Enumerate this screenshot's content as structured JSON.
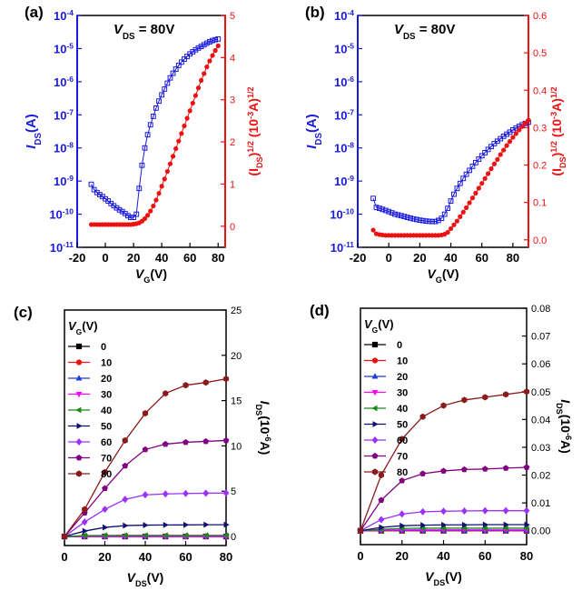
{
  "colors": {
    "blue": "#1a1adf",
    "red": "#ee1111",
    "black": "#000000"
  },
  "chart_data": [
    {
      "panel": "(a)",
      "type": "line",
      "annotation": "V_DS = 80V",
      "xlabel": "V_G(V)",
      "ylabel_left": "I_DS(A)",
      "ylabel_right": "(I_DS)^1/2 (10^-3A)^1/2",
      "xlim": [
        -20,
        85
      ],
      "xticks": [
        "-20",
        "0",
        "20",
        "40",
        "60",
        "80"
      ],
      "ylim_left_log10": [
        -11,
        -4
      ],
      "yticks_left": [
        "10^-11",
        "10^-10",
        "10^-9",
        "10^-8",
        "10^-7",
        "10^-6",
        "10^-5",
        "10^-4"
      ],
      "ylim_right": [
        -0.5,
        5
      ],
      "yticks_right": [
        "0",
        "1",
        "2",
        "3",
        "4",
        "5"
      ],
      "series": [
        {
          "axis": "left",
          "marker": "open-square",
          "color": "blue",
          "x": [
            -10,
            -8,
            -6,
            -4,
            -2,
            0,
            2,
            4,
            6,
            8,
            10,
            12,
            14,
            16,
            18,
            20,
            22,
            24,
            26,
            28,
            30,
            32,
            34,
            36,
            38,
            40,
            42,
            44,
            46,
            48,
            50,
            52,
            54,
            56,
            58,
            60,
            62,
            64,
            66,
            68,
            70,
            72,
            74,
            76,
            78,
            80
          ],
          "y": [
            8e-10,
            5.5e-10,
            4.5e-10,
            3.9e-10,
            3.4e-10,
            2.9e-10,
            2.5e-10,
            2.1e-10,
            1.8e-10,
            1.55e-10,
            1.35e-10,
            1.2e-10,
            1.05e-10,
            9e-11,
            8e-11,
            8e-11,
            1e-10,
            6e-10,
            3e-09,
            1e-08,
            2.5e-08,
            5e-08,
            9e-08,
            1.6e-07,
            2.6e-07,
            4e-07,
            6e-07,
            9e-07,
            1.3e-06,
            1.8e-06,
            2.4e-06,
            3.1e-06,
            3.9e-06,
            4.8e-06,
            5.8e-06,
            6.9e-06,
            8e-06,
            9.2e-06,
            1.04e-05,
            1.16e-05,
            1.3e-05,
            1.45e-05,
            1.6e-05,
            1.75e-05,
            1.85e-05,
            1.95e-05
          ]
        },
        {
          "axis": "right",
          "marker": "filled-circle",
          "color": "red",
          "x": [
            -10,
            -8,
            -6,
            -4,
            -2,
            0,
            2,
            4,
            6,
            8,
            10,
            12,
            14,
            16,
            18,
            20,
            22,
            24,
            26,
            28,
            30,
            32,
            34,
            36,
            38,
            40,
            42,
            44,
            46,
            48,
            50,
            52,
            54,
            56,
            58,
            60,
            62,
            64,
            66,
            68,
            70,
            72,
            74,
            76,
            78,
            80
          ],
          "y": [
            0.04,
            0.04,
            0.04,
            0.04,
            0.04,
            0.04,
            0.04,
            0.04,
            0.04,
            0.04,
            0.04,
            0.04,
            0.04,
            0.04,
            0.04,
            0.05,
            0.06,
            0.08,
            0.12,
            0.18,
            0.26,
            0.36,
            0.48,
            0.62,
            0.78,
            0.95,
            1.12,
            1.3,
            1.48,
            1.66,
            1.84,
            2.02,
            2.2,
            2.38,
            2.56,
            2.74,
            2.92,
            3.1,
            3.28,
            3.46,
            3.62,
            3.78,
            3.92,
            4.05,
            4.17,
            4.28
          ]
        }
      ]
    },
    {
      "panel": "(b)",
      "type": "line",
      "annotation": "V_DS = 80V",
      "xlabel": "V_G(V)",
      "ylabel_left": "I_DS(A)",
      "ylabel_right": "(I_DS)^1/2 (10^-3A)^1/2",
      "xlim": [
        -20,
        90
      ],
      "xticks": [
        "-20",
        "0",
        "20",
        "40",
        "60",
        "80"
      ],
      "ylim_left_log10": [
        -11,
        -4
      ],
      "yticks_left": [
        "10^-11",
        "10^-10",
        "10^-9",
        "10^-8",
        "10^-7",
        "10^-6",
        "10^-5",
        "10^-4"
      ],
      "ylim_right": [
        -0.02,
        0.6
      ],
      "yticks_right": [
        "0.0",
        "0.1",
        "0.2",
        "0.3",
        "0.4",
        "0.5",
        "0.6"
      ],
      "series": [
        {
          "axis": "left",
          "marker": "open-square",
          "color": "blue",
          "x": [
            -10,
            -8,
            -6,
            -4,
            -2,
            0,
            2,
            4,
            6,
            8,
            10,
            12,
            14,
            16,
            18,
            20,
            22,
            24,
            26,
            28,
            30,
            32,
            34,
            36,
            38,
            40,
            42,
            44,
            46,
            48,
            50,
            52,
            54,
            56,
            58,
            60,
            62,
            64,
            66,
            68,
            70,
            72,
            74,
            76,
            78,
            80,
            82,
            84,
            86,
            88,
            90
          ],
          "y": [
            3e-10,
            1.6e-10,
            1.5e-10,
            1.4e-10,
            1.3e-10,
            1.2e-10,
            1.1e-10,
            1e-10,
            9.5e-11,
            9e-11,
            8.5e-11,
            8e-11,
            7.6e-11,
            7.2e-11,
            6.9e-11,
            6.6e-11,
            6.4e-11,
            6.2e-11,
            6.1e-11,
            6e-11,
            6e-11,
            6.5e-11,
            7.5e-11,
            1e-10,
            1.5e-10,
            2.5e-10,
            4e-10,
            6e-10,
            8.5e-10,
            1.2e-09,
            1.6e-09,
            2.1e-09,
            2.8e-09,
            3.6e-09,
            4.6e-09,
            5.8e-09,
            7.2e-09,
            9e-09,
            1.1e-08,
            1.35e-08,
            1.6e-08,
            1.9e-08,
            2.25e-08,
            2.6e-08,
            3e-08,
            3.5e-08,
            4e-08,
            4.5e-08,
            5e-08,
            5.5e-08,
            6e-08
          ]
        },
        {
          "axis": "right",
          "marker": "filled-circle",
          "color": "red",
          "x": [
            -10,
            -8,
            -6,
            -4,
            -2,
            0,
            2,
            4,
            6,
            8,
            10,
            12,
            14,
            16,
            18,
            20,
            22,
            24,
            26,
            28,
            30,
            32,
            34,
            36,
            38,
            40,
            42,
            44,
            46,
            48,
            50,
            52,
            54,
            56,
            58,
            60,
            62,
            64,
            66,
            68,
            70,
            72,
            74,
            76,
            78,
            80,
            82,
            84,
            86,
            88,
            90
          ],
          "y": [
            0.026,
            0.016,
            0.014,
            0.013,
            0.012,
            0.012,
            0.012,
            0.012,
            0.012,
            0.012,
            0.012,
            0.012,
            0.012,
            0.012,
            0.012,
            0.012,
            0.012,
            0.012,
            0.012,
            0.012,
            0.012,
            0.012,
            0.013,
            0.015,
            0.02,
            0.03,
            0.04,
            0.05,
            0.062,
            0.074,
            0.086,
            0.099,
            0.112,
            0.125,
            0.138,
            0.151,
            0.164,
            0.177,
            0.19,
            0.203,
            0.215,
            0.228,
            0.24,
            0.252,
            0.263,
            0.274,
            0.284,
            0.294,
            0.303,
            0.312,
            0.32
          ]
        }
      ]
    },
    {
      "panel": "(c)",
      "type": "line",
      "xlabel": "V_DS(V)",
      "ylabel_right": "I_DS(10^-6A)",
      "legend_title": "V_G(V)",
      "legend_position": "top-left",
      "xlim": [
        0,
        80
      ],
      "xticks": [
        "0",
        "20",
        "40",
        "60",
        "80"
      ],
      "ylim": [
        -1,
        25
      ],
      "yticks": [
        "0",
        "5",
        "10",
        "15",
        "20",
        "25"
      ],
      "x": [
        0,
        10,
        20,
        30,
        40,
        50,
        60,
        70,
        80
      ],
      "series": [
        {
          "name": "0",
          "color": "#000000",
          "marker": "square",
          "values": [
            0,
            0,
            0,
            0,
            0,
            0,
            0,
            0,
            0
          ]
        },
        {
          "name": "10",
          "color": "#ee1111",
          "marker": "circle",
          "values": [
            0,
            0,
            0,
            0,
            0,
            0,
            0,
            0,
            0
          ]
        },
        {
          "name": "20",
          "color": "#1f3bd6",
          "marker": "triangle-up",
          "values": [
            0,
            0,
            0,
            0,
            0,
            0,
            0,
            0,
            0
          ]
        },
        {
          "name": "30",
          "color": "#ff00ff",
          "marker": "triangle-down",
          "values": [
            0,
            0.01,
            0.01,
            0.01,
            0.01,
            0.01,
            0.01,
            0.01,
            0.01
          ]
        },
        {
          "name": "40",
          "color": "#1a8a1a",
          "marker": "triangle-left",
          "values": [
            0,
            0.1,
            0.12,
            0.13,
            0.13,
            0.13,
            0.13,
            0.13,
            0.13
          ]
        },
        {
          "name": "50",
          "color": "#101070",
          "marker": "triangle-right",
          "values": [
            0,
            0.6,
            1.0,
            1.2,
            1.25,
            1.27,
            1.28,
            1.3,
            1.3
          ]
        },
        {
          "name": "60",
          "color": "#9b30ff",
          "marker": "diamond",
          "values": [
            0,
            1.6,
            3.0,
            4.1,
            4.6,
            4.7,
            4.75,
            4.78,
            4.8
          ]
        },
        {
          "name": "70",
          "color": "#800080",
          "marker": "pentagon",
          "values": [
            0,
            2.6,
            5.3,
            7.8,
            9.6,
            10.2,
            10.4,
            10.5,
            10.6
          ]
        },
        {
          "name": "80",
          "color": "#8b1a1a",
          "marker": "hexagon",
          "values": [
            0,
            3.0,
            7.1,
            10.6,
            13.6,
            15.8,
            16.7,
            17.0,
            17.4
          ]
        }
      ]
    },
    {
      "panel": "(d)",
      "type": "line",
      "xlabel": "V_DS(V)",
      "ylabel_right": "I_DS(10^-6A)",
      "legend_title": "V_G(V)",
      "legend_position": "top-left",
      "xlim": [
        0,
        80
      ],
      "xticks": [
        "0",
        "20",
        "40",
        "60",
        "80"
      ],
      "ylim": [
        -0.005,
        0.08
      ],
      "yticks": [
        "0.00",
        "0.01",
        "0.02",
        "0.03",
        "0.04",
        "0.05",
        "0.06",
        "0.07",
        "0.08"
      ],
      "x": [
        0,
        10,
        20,
        30,
        40,
        50,
        60,
        70,
        80
      ],
      "series": [
        {
          "name": "0",
          "color": "#000000",
          "marker": "square",
          "values": [
            0,
            0,
            0,
            0,
            0,
            0,
            0,
            0,
            0
          ]
        },
        {
          "name": "10",
          "color": "#ee1111",
          "marker": "circle",
          "values": [
            0,
            0,
            0,
            0,
            0,
            0,
            0,
            0,
            0
          ]
        },
        {
          "name": "20",
          "color": "#1f3bd6",
          "marker": "triangle-up",
          "values": [
            0,
            0.0001,
            0.0001,
            0.0001,
            0.0001,
            0.0001,
            0.0001,
            0.0001,
            0.0001
          ]
        },
        {
          "name": "30",
          "color": "#ff00ff",
          "marker": "triangle-down",
          "values": [
            0,
            0.0002,
            0.0003,
            0.0003,
            0.0003,
            0.0003,
            0.0003,
            0.0003,
            0.0003
          ]
        },
        {
          "name": "40",
          "color": "#1a8a1a",
          "marker": "triangle-left",
          "values": [
            0,
            0.0005,
            0.0008,
            0.0009,
            0.0009,
            0.0009,
            0.0009,
            0.0009,
            0.0009
          ]
        },
        {
          "name": "50",
          "color": "#101070",
          "marker": "triangle-right",
          "values": [
            0,
            0.0012,
            0.0018,
            0.002,
            0.0021,
            0.0021,
            0.0022,
            0.0022,
            0.0022
          ]
        },
        {
          "name": "60",
          "color": "#9b30ff",
          "marker": "diamond",
          "values": [
            0,
            0.004,
            0.006,
            0.0068,
            0.007,
            0.0071,
            0.0072,
            0.0072,
            0.0072
          ]
        },
        {
          "name": "70",
          "color": "#800080",
          "marker": "pentagon",
          "values": [
            0,
            0.011,
            0.018,
            0.0205,
            0.0215,
            0.022,
            0.0222,
            0.0225,
            0.0228
          ]
        },
        {
          "name": "80",
          "color": "#8b1a1a",
          "marker": "hexagon",
          "values": [
            0,
            0.02,
            0.033,
            0.041,
            0.045,
            0.047,
            0.048,
            0.049,
            0.05
          ]
        }
      ]
    }
  ]
}
